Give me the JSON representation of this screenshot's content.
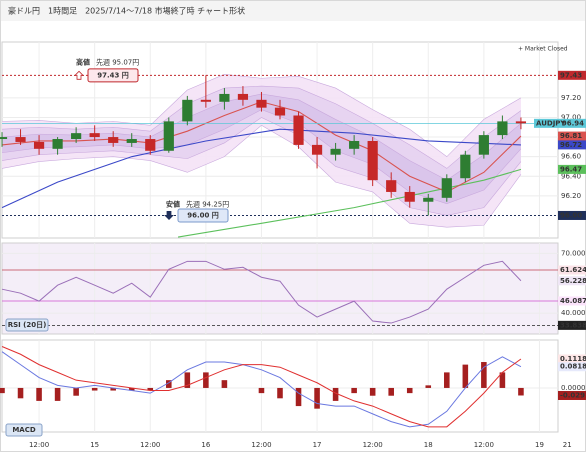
{
  "header": {
    "title": "豪ドル円　1時間足　2025/7/14〜7/18 市場終了時 チャート形状"
  },
  "chart_data": [
    {
      "type": "candlestick",
      "note": "+ Market Closed",
      "x": [
        4,
        8,
        12,
        16,
        20,
        24,
        28,
        32,
        36,
        40,
        44,
        48,
        52,
        56,
        60,
        64,
        68,
        72,
        76,
        80,
        84,
        88,
        92,
        96,
        100,
        104,
        108,
        112,
        116
      ],
      "open": [
        96.78,
        96.8,
        96.75,
        96.68,
        96.78,
        96.84,
        96.8,
        96.74,
        96.78,
        96.66,
        96.96,
        97.18,
        97.16,
        97.24,
        97.18,
        97.1,
        97.02,
        96.72,
        96.62,
        96.68,
        96.76,
        96.36,
        96.24,
        96.14,
        96.18,
        96.38,
        96.62,
        96.82,
        96.96
      ],
      "high": [
        96.85,
        96.88,
        96.82,
        96.8,
        96.9,
        96.92,
        96.86,
        96.84,
        96.82,
        97.0,
        97.22,
        97.43,
        97.3,
        97.32,
        97.26,
        97.18,
        97.06,
        96.8,
        96.74,
        96.82,
        96.8,
        96.44,
        96.3,
        96.22,
        96.42,
        96.66,
        96.86,
        97.02,
        97.0
      ],
      "low": [
        96.7,
        96.72,
        96.62,
        96.62,
        96.74,
        96.76,
        96.7,
        96.7,
        96.62,
        96.64,
        96.92,
        97.1,
        97.08,
        97.12,
        97.06,
        96.98,
        96.68,
        96.48,
        96.56,
        96.62,
        96.3,
        96.18,
        96.08,
        96.0,
        96.14,
        96.34,
        96.58,
        96.78,
        96.88
      ],
      "close": [
        96.8,
        96.75,
        96.68,
        96.78,
        96.84,
        96.8,
        96.74,
        96.78,
        96.66,
        96.96,
        97.18,
        97.16,
        97.24,
        97.18,
        97.1,
        97.02,
        96.72,
        96.62,
        96.68,
        96.76,
        96.36,
        96.24,
        96.14,
        96.18,
        96.38,
        96.62,
        96.82,
        96.96,
        96.94
      ],
      "up_color": "#2e7d32",
      "down_color": "#c62828",
      "xlim": [
        4,
        124
      ],
      "ylim": [
        95.77,
        97.77
      ],
      "xticks": [
        {
          "value": 12,
          "label": "12:00"
        },
        {
          "value": 24,
          "label": "15"
        },
        {
          "value": 36,
          "label": "12:00"
        },
        {
          "value": 48,
          "label": "16"
        },
        {
          "value": 60,
          "label": "12:00"
        },
        {
          "value": 72,
          "label": "17"
        },
        {
          "value": 84,
          "label": "12:00"
        },
        {
          "value": 96,
          "label": "18"
        },
        {
          "value": 108,
          "label": "12:00"
        },
        {
          "value": 120,
          "label": "19"
        },
        {
          "value": 126,
          "label": "21"
        }
      ],
      "yticks": [
        {
          "value": 97.2,
          "label": "97.20"
        },
        {
          "value": 97,
          "label": "97.00"
        },
        {
          "value": 96.8,
          "label": "96.80"
        },
        {
          "value": 96.6,
          "label": "96.60"
        },
        {
          "value": 96.4,
          "label": "96.40"
        },
        {
          "value": 96.2,
          "label": "96.20"
        }
      ],
      "bands": {
        "x": [
          4,
          12,
          20,
          28,
          36,
          44,
          52,
          60,
          68,
          76,
          84,
          92,
          100,
          108,
          116
        ],
        "middle": [
          96.72,
          96.76,
          96.76,
          96.78,
          96.74,
          96.86,
          97.02,
          97.16,
          97.06,
          96.82,
          96.66,
          96.4,
          96.24,
          96.44,
          96.81
        ],
        "middle_color": "#d9534f",
        "upper": [
          [
            96.8,
            96.83,
            96.82,
            96.84,
            96.8,
            97.0,
            97.16,
            97.24,
            97.18,
            96.98,
            96.8,
            96.56,
            96.36,
            96.62,
            96.94
          ],
          [
            96.88,
            96.9,
            96.88,
            96.9,
            96.86,
            97.14,
            97.3,
            97.32,
            97.3,
            97.14,
            96.94,
            96.72,
            96.48,
            96.8,
            97.07
          ],
          [
            96.96,
            96.97,
            96.94,
            96.96,
            96.92,
            97.28,
            97.44,
            97.4,
            97.42,
            97.3,
            97.08,
            96.88,
            96.6,
            96.98,
            97.2
          ]
        ],
        "lower": [
          [
            96.64,
            96.69,
            96.7,
            96.72,
            96.68,
            96.72,
            96.88,
            97.08,
            96.94,
            96.66,
            96.52,
            96.24,
            96.12,
            96.26,
            96.68
          ],
          [
            96.56,
            96.62,
            96.64,
            96.66,
            96.62,
            96.58,
            96.74,
            97.0,
            96.82,
            96.5,
            96.38,
            96.08,
            96.0,
            96.08,
            96.55
          ],
          [
            96.48,
            96.55,
            96.58,
            96.6,
            96.56,
            96.44,
            96.6,
            96.92,
            96.7,
            96.34,
            96.24,
            95.92,
            95.88,
            95.9,
            96.42
          ]
        ],
        "fills": [
          "#d8c3ea",
          "#e5d2f0",
          "#f4e2f6"
        ]
      },
      "lines": [
        {
          "color": "#3b48c8",
          "x": [
            4,
            16,
            32,
            48,
            64,
            80,
            96,
            116
          ],
          "values": [
            96.08,
            96.34,
            96.6,
            96.76,
            96.88,
            96.84,
            96.76,
            96.72
          ]
        },
        {
          "color": "#5cc05c",
          "x": [
            42,
            60,
            80,
            96,
            108,
            116
          ],
          "values": [
            95.78,
            95.92,
            96.08,
            96.24,
            96.36,
            96.47
          ]
        }
      ],
      "levels": [
        {
          "title": "高値",
          "note": "先週 95.07円",
          "box": "97.43 円",
          "value": 97.43,
          "color": "#c0282d"
        },
        {
          "title": "安値",
          "note": "先週 94.25円",
          "box": "96.00 円",
          "value": 96,
          "value_label": "96.00",
          "color": "#1f2f5a"
        }
      ],
      "current": {
        "name": "AUDJPY",
        "value": 96.94,
        "color": "#5cc8d8"
      }
    },
    {
      "type": "line",
      "label": "RSI (20日)",
      "values": [
        52,
        50,
        46,
        54,
        58,
        54,
        50,
        55,
        48,
        62,
        66,
        66,
        62,
        63,
        58,
        56,
        44,
        38,
        42,
        46,
        36,
        35,
        38,
        42,
        52,
        58,
        64,
        66,
        56.2289
      ],
      "color": "#9a6fb8",
      "ylim": [
        29.5,
        75.2
      ],
      "yticks": [
        {
          "value": 70,
          "label": "70.000"
        },
        {
          "value": 40,
          "label": "40.000"
        }
      ],
      "levels": [
        {
          "value": 61.6245,
          "color": "#c04050"
        },
        {
          "value": 46.0875,
          "color": "#d050d0"
        },
        {
          "value": 33.8387,
          "color": "#222222"
        }
      ]
    },
    {
      "type": "macd",
      "label": "MACD",
      "macd": [
        0.14,
        0.09,
        0.04,
        0.01,
        0,
        0.01,
        0,
        -0.01,
        -0.02,
        0.02,
        0.07,
        0.1,
        0.1,
        0.09,
        0.07,
        0.04,
        -0.02,
        -0.06,
        -0.07,
        -0.07,
        -0.1,
        -0.13,
        -0.15,
        -0.14,
        -0.09,
        0,
        0.08,
        0.12,
        0.0818
      ],
      "signal": [
        0.16,
        0.13,
        0.09,
        0.06,
        0.03,
        0.02,
        0.01,
        0,
        -0.01,
        -0.01,
        0.01,
        0.04,
        0.07,
        0.09,
        0.09,
        0.08,
        0.05,
        0.02,
        -0.02,
        -0.05,
        -0.07,
        -0.1,
        -0.13,
        -0.15,
        -0.15,
        -0.09,
        -0.02,
        0.06,
        0.1118
      ],
      "histogram": [
        -0.02,
        -0.04,
        -0.05,
        -0.05,
        -0.03,
        -0.01,
        -0.01,
        -0.01,
        -0.01,
        0.03,
        0.06,
        0.06,
        0.03,
        0,
        -0.02,
        -0.04,
        -0.07,
        -0.08,
        -0.05,
        -0.02,
        -0.03,
        -0.03,
        -0.02,
        0.01,
        0.06,
        0.09,
        0.1,
        0.06,
        -0.0291
      ],
      "macd_color": "#6a78e0",
      "signal_color": "#e03030",
      "histogram_color": "#a51f1f",
      "ylim": [
        -0.17,
        0.185
      ],
      "yticks": [
        {
          "value": 0,
          "label": "0.0000"
        }
      ]
    }
  ]
}
